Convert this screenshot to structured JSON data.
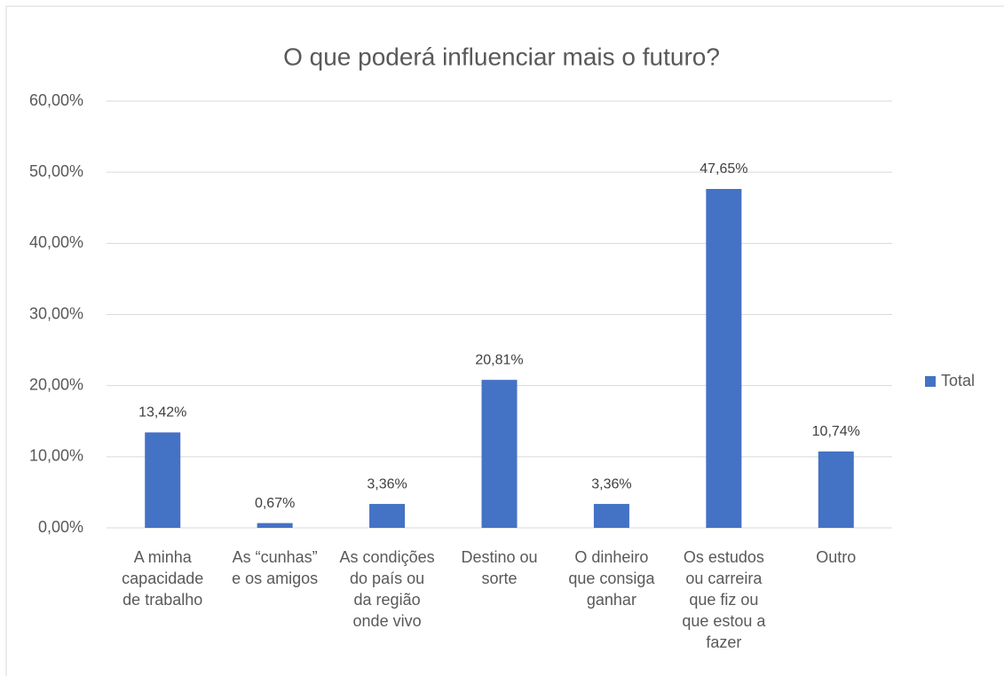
{
  "chart_data": {
    "type": "bar",
    "title": "O que poderá influenciar mais o futuro?",
    "categories": [
      "A minha capacidade de trabalho",
      "As “cunhas” e os amigos",
      "As condições do país ou da região onde vivo",
      "Destino ou sorte",
      "O dinheiro que consiga ganhar",
      "Os estudos ou carreira que fiz ou que estou a fazer",
      "Outro"
    ],
    "series": [
      {
        "name": "Total",
        "color": "#4472c4",
        "values": [
          13.42,
          0.67,
          3.36,
          20.81,
          3.36,
          47.65,
          10.74
        ],
        "value_labels": [
          "13,42%",
          "0,67%",
          "3,36%",
          "20,81%",
          "3,36%",
          "47,65%",
          "10,74%"
        ]
      }
    ],
    "ylim": [
      0,
      60
    ],
    "yticks": [
      {
        "value": 0,
        "label": "0,00%"
      },
      {
        "value": 10,
        "label": "10,00%"
      },
      {
        "value": 20,
        "label": "20,00%"
      },
      {
        "value": 30,
        "label": "30,00%"
      },
      {
        "value": 40,
        "label": "40,00%"
      },
      {
        "value": 50,
        "label": "50,00%"
      },
      {
        "value": 60,
        "label": "60,00%"
      }
    ],
    "grid": true,
    "legend": "right"
  }
}
